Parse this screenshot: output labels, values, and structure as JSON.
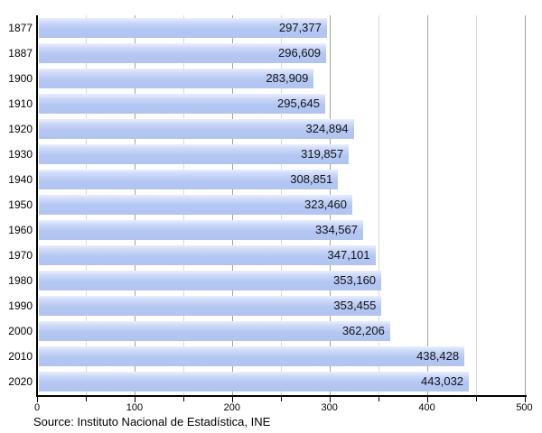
{
  "chart_data": {
    "type": "bar",
    "orientation": "horizontal",
    "title": "",
    "xlabel": "",
    "ylabel": "",
    "categories": [
      "1877",
      "1887",
      "1900",
      "1910",
      "1920",
      "1930",
      "1940",
      "1950",
      "1960",
      "1970",
      "1980",
      "1990",
      "2000",
      "2010",
      "2020"
    ],
    "values": [
      297377,
      296609,
      283909,
      295645,
      324894,
      319857,
      308851,
      323460,
      334567,
      347101,
      353160,
      353455,
      362206,
      438428,
      443032
    ],
    "value_labels": [
      "297,377",
      "296,609",
      "283,909",
      "295,645",
      "324,894",
      "319,857",
      "308,851",
      "323,460",
      "334,567",
      "347,101",
      "353,160",
      "353,455",
      "362,206",
      "438,428",
      "443,032"
    ],
    "xlim": [
      0,
      500
    ],
    "x_axis_unit_divisor": 1000,
    "xticks_major": [
      0,
      100,
      200,
      300,
      400,
      500
    ],
    "xtick_labels": [
      "0",
      "100",
      "200",
      "300",
      "400",
      "500"
    ],
    "xticks_minor": [
      50,
      150,
      250,
      350,
      450
    ],
    "grid": true,
    "legend": false
  },
  "footer": {
    "source": "Source: Instituto Nacional de Estadística, INE"
  },
  "colors": {
    "background": "#ffffff",
    "bar": "#b4c7f2",
    "bar_highlight": "#e9effd",
    "axis": "#000000",
    "grid_major": "#a2a2a2",
    "grid_minor": "#dadada",
    "value_text": "#121219",
    "label_text": "#000000"
  }
}
